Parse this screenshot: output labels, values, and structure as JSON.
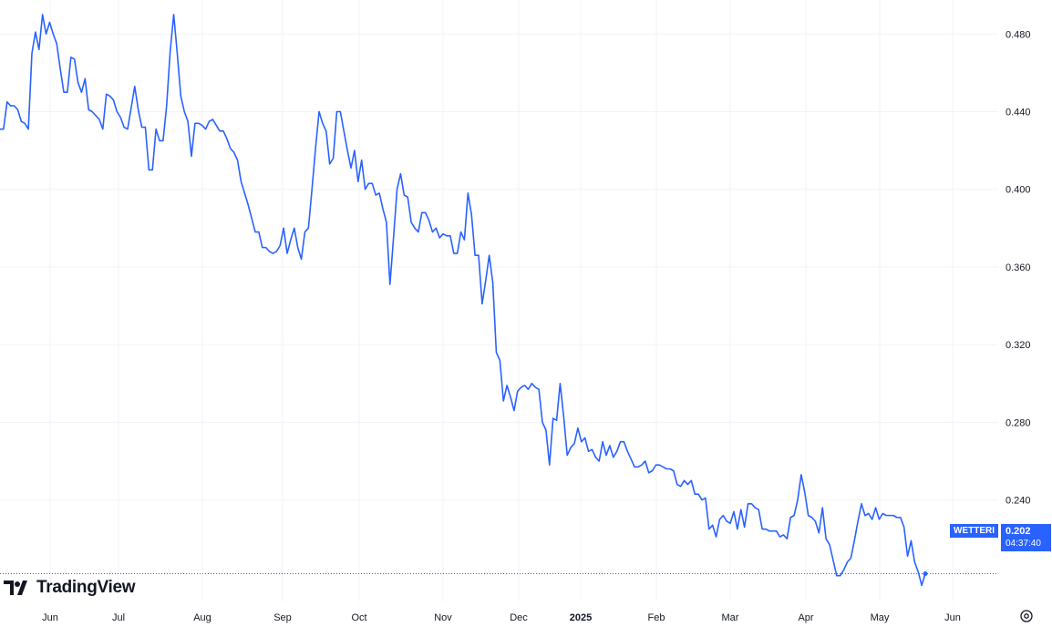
{
  "brand": {
    "name": "TradingView",
    "icon": "tradingview-logo-icon"
  },
  "settings_icon": "gear-icon",
  "symbol_tag": "WETTERI",
  "last_price": "0.202",
  "countdown": "04:37:40",
  "colors": {
    "line": "#2962ff",
    "grid": "#f0f3fa",
    "text": "#131722",
    "badge": "#2962ff"
  },
  "chart_data": {
    "type": "line",
    "series": [
      {
        "values": [
          0.431,
          0.431,
          0.445,
          0.443,
          0.443,
          0.441,
          0.435,
          0.434,
          0.431,
          0.47,
          0.481,
          0.472,
          0.49,
          0.48,
          0.486,
          0.48,
          0.475,
          0.462,
          0.45,
          0.45,
          0.468,
          0.467,
          0.455,
          0.45,
          0.457,
          0.441,
          0.44,
          0.438,
          0.436,
          0.431,
          0.449,
          0.448,
          0.446,
          0.44,
          0.437,
          0.432,
          0.431,
          0.442,
          0.453,
          0.441,
          0.432,
          0.432,
          0.41,
          0.41,
          0.431,
          0.425,
          0.425,
          0.443,
          0.471,
          0.49,
          0.47,
          0.448,
          0.44,
          0.435,
          0.417,
          0.434,
          0.434,
          0.433,
          0.431,
          0.435,
          0.436,
          0.433,
          0.43,
          0.43,
          0.426,
          0.421,
          0.419,
          0.415,
          0.404,
          0.398,
          0.392,
          0.385,
          0.378,
          0.378,
          0.37,
          0.37,
          0.368,
          0.367,
          0.368,
          0.371,
          0.38,
          0.367,
          0.374,
          0.38,
          0.37,
          0.364,
          0.378,
          0.38,
          0.4,
          0.421,
          0.44,
          0.434,
          0.43,
          0.413,
          0.416,
          0.44,
          0.44,
          0.43,
          0.42,
          0.411,
          0.42,
          0.404,
          0.415,
          0.4,
          0.403,
          0.403,
          0.397,
          0.398,
          0.39,
          0.383,
          0.351,
          0.375,
          0.4,
          0.408,
          0.397,
          0.396,
          0.383,
          0.38,
          0.378,
          0.388,
          0.388,
          0.384,
          0.378,
          0.38,
          0.375,
          0.377,
          0.376,
          0.376,
          0.367,
          0.367,
          0.378,
          0.374,
          0.398,
          0.387,
          0.366,
          0.366,
          0.341,
          0.353,
          0.366,
          0.352,
          0.316,
          0.312,
          0.291,
          0.299,
          0.293,
          0.286,
          0.296,
          0.298,
          0.299,
          0.297,
          0.3,
          0.298,
          0.297,
          0.28,
          0.276,
          0.258,
          0.282,
          0.281,
          0.3,
          0.283,
          0.263,
          0.267,
          0.269,
          0.277,
          0.27,
          0.272,
          0.265,
          0.266,
          0.262,
          0.26,
          0.27,
          0.263,
          0.268,
          0.262,
          0.265,
          0.27,
          0.27,
          0.265,
          0.261,
          0.257,
          0.257,
          0.258,
          0.26,
          0.254,
          0.255,
          0.258,
          0.258,
          0.257,
          0.256,
          0.256,
          0.255,
          0.248,
          0.247,
          0.25,
          0.248,
          0.25,
          0.243,
          0.243,
          0.24,
          0.241,
          0.225,
          0.227,
          0.221,
          0.23,
          0.232,
          0.229,
          0.228,
          0.234,
          0.225,
          0.235,
          0.226,
          0.238,
          0.238,
          0.236,
          0.235,
          0.225,
          0.225,
          0.224,
          0.224,
          0.224,
          0.221,
          0.222,
          0.22,
          0.231,
          0.232,
          0.24,
          0.253,
          0.244,
          0.232,
          0.231,
          0.229,
          0.223,
          0.236,
          0.22,
          0.217,
          0.209,
          0.201,
          0.201,
          0.204,
          0.208,
          0.21,
          0.219,
          0.229,
          0.238,
          0.232,
          0.233,
          0.23,
          0.236,
          0.23,
          0.233,
          0.232,
          0.232,
          0.232,
          0.231,
          0.231,
          0.226,
          0.211,
          0.219,
          0.208,
          0.203,
          0.196,
          0.202
        ]
      }
    ],
    "x_labels": [
      "Jun",
      "Jul",
      "Aug",
      "Sep",
      "Oct",
      "Nov",
      "Dec",
      "2025",
      "Feb",
      "Mar",
      "Apr",
      "May",
      "Jun"
    ],
    "y_ticks": [
      "0.480",
      "0.440",
      "0.400",
      "0.360",
      "0.320",
      "0.280",
      "0.240"
    ],
    "ylim": [
      0.1877,
      0.4975
    ],
    "last_value": 0.202,
    "grid": true,
    "legend": "none"
  }
}
